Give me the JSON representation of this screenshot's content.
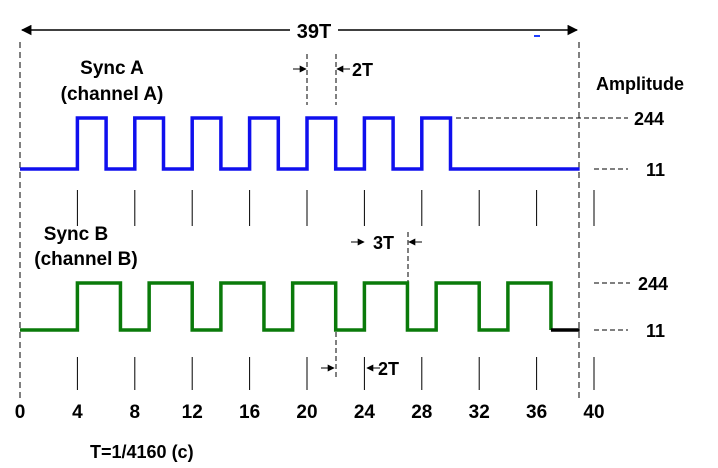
{
  "span_label": "39T",
  "sync_a": {
    "title": "Sync A",
    "subtitle": "(channel A)",
    "color": "#1010ee",
    "high_start_t": [
      4,
      8,
      12,
      16,
      20,
      24,
      28
    ],
    "pulse_high_t": 2,
    "pulse_width_label": "2T"
  },
  "sync_b": {
    "title": "Sync B",
    "subtitle": "(channel B)",
    "color": "#0a7a0a",
    "tail_color": "#000000",
    "high_start_t": [
      4,
      9,
      14,
      19,
      24,
      29,
      34
    ],
    "pulse_high_t": 3,
    "pulse_high_label": "3T",
    "pulse_low_label": "2T"
  },
  "amplitude": {
    "title": "Amplitude",
    "high_label": "244",
    "low_label": "11"
  },
  "time_axis": {
    "ticks": [
      "0",
      "4",
      "8",
      "12",
      "16",
      "20",
      "24",
      "28",
      "32",
      "36",
      "40"
    ],
    "formula": "T=1/4160 (c)"
  }
}
